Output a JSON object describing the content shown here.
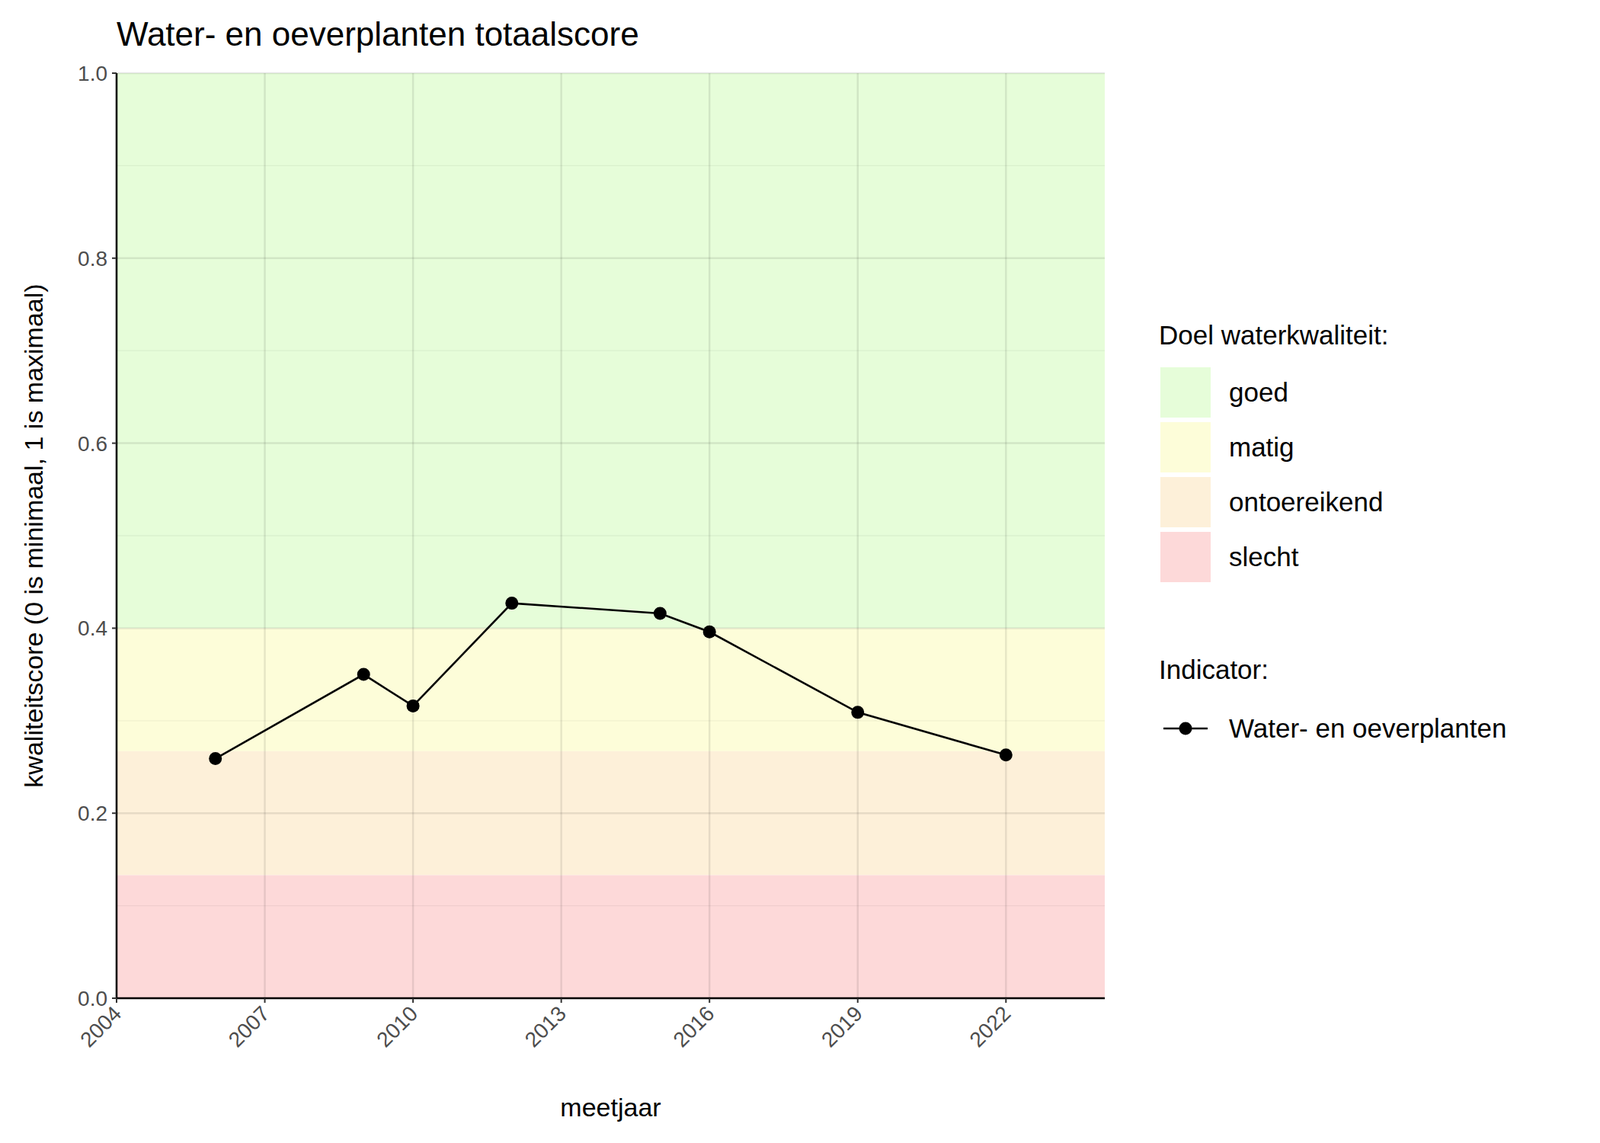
{
  "chart_data": {
    "type": "line",
    "title": "Water- en oeverplanten totaalscore",
    "x_label": "meetjaar",
    "y_label": "kwaliteitscore (0 is minimaal, 1 is maximaal)",
    "x": [
      2006,
      2009,
      2010,
      2012,
      2015,
      2016,
      2019,
      2022
    ],
    "series": [
      {
        "name": "Water- en oeverplanten",
        "color": "#000000",
        "marker": "circle",
        "line_style": "solid",
        "values": [
          0.259,
          0.35,
          0.316,
          0.427,
          0.416,
          0.396,
          0.309,
          0.263
        ]
      }
    ],
    "bands": [
      {
        "name": "goed",
        "from": 0.4,
        "to": 1.0,
        "color": "#e6fdd9"
      },
      {
        "name": "matig",
        "from": 0.267,
        "to": 0.4,
        "color": "#fdfdd9"
      },
      {
        "name": "ontoereikend",
        "from": 0.133,
        "to": 0.267,
        "color": "#fdf0d9"
      },
      {
        "name": "slecht",
        "from": 0.0,
        "to": 0.133,
        "color": "#fdd9d9"
      }
    ],
    "band_legend_title": "Doel waterkwaliteit:",
    "series_legend_title": "Indicator:",
    "xlim": [
      2004,
      2024
    ],
    "ylim": [
      0,
      1
    ],
    "xticks": [
      2004,
      2007,
      2010,
      2013,
      2016,
      2019,
      2022
    ],
    "yticks": [
      {
        "value": 0,
        "label": "0.0"
      },
      {
        "value": 0.2,
        "label": "0.2"
      },
      {
        "value": 0.4,
        "label": "0.4"
      },
      {
        "value": 0.6,
        "label": "0.6"
      },
      {
        "value": 0.8,
        "label": "0.8"
      },
      {
        "value": 1,
        "label": "1.0"
      }
    ],
    "grid": true,
    "legend": "right"
  }
}
